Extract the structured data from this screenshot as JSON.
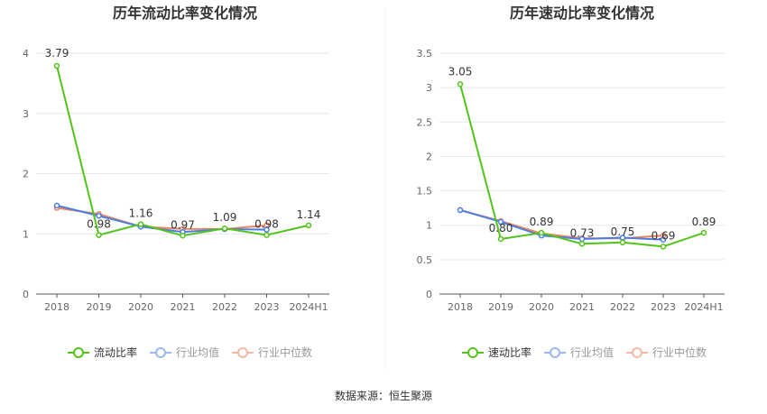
{
  "chart_data": [
    {
      "type": "line",
      "title": "历年流动比率变化情况",
      "categories": [
        "2018",
        "2019",
        "2020",
        "2021",
        "2022",
        "2023",
        "2024H1"
      ],
      "ylim": [
        0,
        4
      ],
      "yticks": [
        0,
        1,
        2,
        3,
        4
      ],
      "grid": true,
      "legend": "bottom",
      "series": [
        {
          "name": "流动比率",
          "color": "#52c41a",
          "values": [
            3.79,
            0.98,
            1.16,
            0.97,
            1.09,
            0.98,
            1.14
          ],
          "labels": true
        },
        {
          "name": "行业均值",
          "color": "#4a7ee6",
          "values": [
            1.47,
            1.3,
            1.12,
            1.03,
            1.08,
            1.07,
            null
          ]
        },
        {
          "name": "行业中位数",
          "color": "#f0845e",
          "values": [
            1.43,
            1.33,
            1.12,
            1.08,
            1.08,
            1.14,
            null
          ]
        }
      ]
    },
    {
      "type": "line",
      "title": "历年速动比率变化情况",
      "categories": [
        "2018",
        "2019",
        "2020",
        "2021",
        "2022",
        "2023",
        "2024H1"
      ],
      "ylim": [
        0,
        3.5
      ],
      "yticks": [
        0,
        0.5,
        1,
        1.5,
        2,
        2.5,
        3,
        3.5
      ],
      "grid": true,
      "legend": "bottom",
      "series": [
        {
          "name": "速动比率",
          "color": "#52c41a",
          "values": [
            3.05,
            0.8,
            0.89,
            0.73,
            0.75,
            0.69,
            0.89
          ],
          "labels": true
        },
        {
          "name": "行业均值",
          "color": "#4a7ee6",
          "values": [
            1.22,
            1.05,
            0.85,
            0.8,
            0.82,
            0.79,
            null
          ]
        },
        {
          "name": "行业中位数",
          "color": "#f0845e",
          "values": [
            1.22,
            1.06,
            0.88,
            0.81,
            0.81,
            0.85,
            null
          ]
        }
      ]
    }
  ],
  "source": "数据来源：恒生聚源"
}
